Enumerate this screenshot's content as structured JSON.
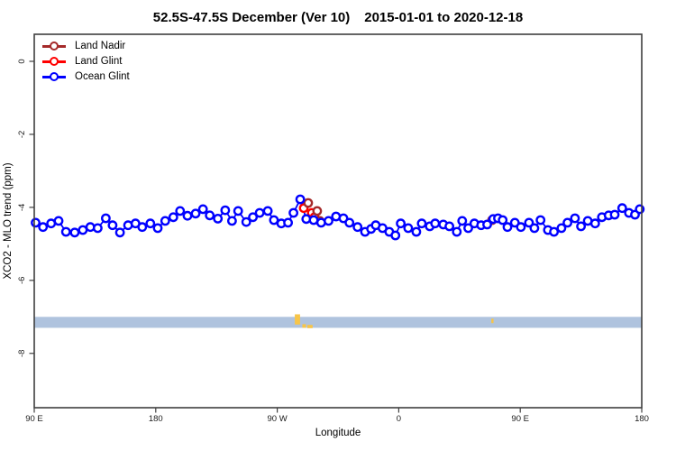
{
  "title": {
    "main": "52.5S-47.5S December (Ver 10)",
    "dates": "2015-01-01 to 2020-12-18"
  },
  "legend": {
    "items": [
      {
        "label": "Land Nadir",
        "color": "#A52A2A"
      },
      {
        "label": "Land Glint",
        "color": "#FF0000"
      },
      {
        "label": "Ocean Glint",
        "color": "#0000FF"
      }
    ]
  },
  "chart_data": {
    "type": "line",
    "title": "52.5S-47.5S December (Ver 10)   2015-01-01 to 2020-12-18",
    "xlabel": "Longitude",
    "ylabel": "XCO2 - MLO trend (ppm)",
    "x_axis": {
      "range": [
        90,
        540
      ],
      "ticks": [
        {
          "lon": 90,
          "label": "90 E"
        },
        {
          "lon": 180,
          "label": "180"
        },
        {
          "lon": 270,
          "label": "90 W"
        },
        {
          "lon": 360,
          "label": "0"
        },
        {
          "lon": 450,
          "label": "90 E"
        },
        {
          "lon": 540,
          "label": "180"
        }
      ]
    },
    "y_axis": {
      "range": [
        0.75,
        -9.5
      ],
      "ticks": [
        {
          "v": 0,
          "label": "0"
        },
        {
          "v": -2,
          "label": "-2"
        },
        {
          "v": -4,
          "label": "-4"
        },
        {
          "v": -6,
          "label": "-6"
        },
        {
          "v": -8,
          "label": "-8"
        }
      ]
    },
    "band": {
      "color": "#AFC3DE",
      "v_top": -7.0,
      "v_bottom": -7.3,
      "lon1": 90,
      "lon2": 540
    },
    "band_marks": {
      "color": "#F7C549",
      "rects": [
        {
          "lon1": 283.0,
          "lon2": 286.9,
          "v1": -6.93,
          "v2": -7.21
        },
        {
          "lon1": 288.6,
          "lon2": 291.3,
          "v1": -7.2,
          "v2": -7.3
        },
        {
          "lon1": 292.3,
          "lon2": 296.2,
          "v1": -7.22,
          "v2": -7.31
        },
        {
          "lon1": 428.6,
          "lon2": 430.2,
          "v1": -7.05,
          "v2": -7.17
        }
      ]
    },
    "series": [
      {
        "name": "Land Nadir",
        "color": "#A52A2A",
        "connected": false,
        "points": [
          [
            292.9,
            -3.88
          ],
          [
            299.6,
            -4.1
          ],
          [
            301.5,
            -4.37
          ],
          [
            429.2,
            -4.35
          ]
        ]
      },
      {
        "name": "Land Glint",
        "color": "#FF0000",
        "connected": false,
        "points": [
          [
            289.6,
            -4.02
          ],
          [
            295.6,
            -4.15
          ],
          [
            297.6,
            -4.27
          ]
        ]
      },
      {
        "name": "Ocean Glint",
        "color": "#0000FF",
        "connected": true,
        "points": [
          [
            91,
            -4.42
          ],
          [
            96.5,
            -4.54
          ],
          [
            102.5,
            -4.44
          ],
          [
            108,
            -4.37
          ],
          [
            113.5,
            -4.67
          ],
          [
            120,
            -4.69
          ],
          [
            126,
            -4.62
          ],
          [
            131.5,
            -4.54
          ],
          [
            137,
            -4.57
          ],
          [
            143,
            -4.3
          ],
          [
            148,
            -4.49
          ],
          [
            153.5,
            -4.69
          ],
          [
            159.5,
            -4.49
          ],
          [
            165,
            -4.44
          ],
          [
            170,
            -4.54
          ],
          [
            176,
            -4.44
          ],
          [
            181.5,
            -4.57
          ],
          [
            187,
            -4.37
          ],
          [
            193,
            -4.27
          ],
          [
            198,
            -4.1
          ],
          [
            203.5,
            -4.23
          ],
          [
            209.5,
            -4.17
          ],
          [
            215,
            -4.05
          ],
          [
            220,
            -4.22
          ],
          [
            226,
            -4.31
          ],
          [
            231.5,
            -4.08
          ],
          [
            236.5,
            -4.37
          ],
          [
            241,
            -4.1
          ],
          [
            247,
            -4.4
          ],
          [
            252,
            -4.27
          ],
          [
            257,
            -4.15
          ],
          [
            263,
            -4.1
          ],
          [
            267.5,
            -4.35
          ],
          [
            273,
            -4.44
          ],
          [
            278,
            -4.42
          ],
          [
            282,
            -4.15
          ],
          [
            287,
            -3.78
          ],
          [
            291.5,
            -4.32
          ],
          [
            297,
            -4.35
          ],
          [
            302.5,
            -4.42
          ],
          [
            308,
            -4.37
          ],
          [
            313.5,
            -4.25
          ],
          [
            319,
            -4.3
          ],
          [
            323.5,
            -4.42
          ],
          [
            329.5,
            -4.54
          ],
          [
            335,
            -4.67
          ],
          [
            339.5,
            -4.59
          ],
          [
            343,
            -4.49
          ],
          [
            348,
            -4.57
          ],
          [
            353,
            -4.67
          ],
          [
            357.5,
            -4.77
          ],
          [
            361.5,
            -4.44
          ],
          [
            367,
            -4.57
          ],
          [
            373,
            -4.67
          ],
          [
            377,
            -4.44
          ],
          [
            383,
            -4.52
          ],
          [
            387,
            -4.44
          ],
          [
            393,
            -4.47
          ],
          [
            397.5,
            -4.52
          ],
          [
            403,
            -4.67
          ],
          [
            407,
            -4.37
          ],
          [
            411.5,
            -4.57
          ],
          [
            416,
            -4.44
          ],
          [
            421,
            -4.49
          ],
          [
            425.5,
            -4.47
          ],
          [
            430,
            -4.32
          ],
          [
            433.5,
            -4.3
          ],
          [
            437,
            -4.35
          ],
          [
            440.5,
            -4.54
          ],
          [
            446,
            -4.42
          ],
          [
            450.5,
            -4.54
          ],
          [
            456.5,
            -4.42
          ],
          [
            460.5,
            -4.57
          ],
          [
            465,
            -4.35
          ],
          [
            470.5,
            -4.62
          ],
          [
            475,
            -4.67
          ],
          [
            480.5,
            -4.57
          ],
          [
            485,
            -4.42
          ],
          [
            490.5,
            -4.3
          ],
          [
            495,
            -4.52
          ],
          [
            500,
            -4.37
          ],
          [
            505.5,
            -4.44
          ],
          [
            510.5,
            -4.27
          ],
          [
            515.5,
            -4.22
          ],
          [
            520,
            -4.2
          ],
          [
            525.5,
            -4.02
          ],
          [
            530.5,
            -4.15
          ],
          [
            535,
            -4.2
          ],
          [
            538.5,
            -4.05
          ]
        ]
      }
    ]
  }
}
